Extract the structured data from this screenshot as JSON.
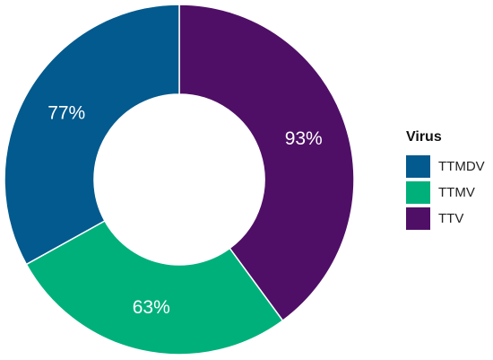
{
  "chart_data": {
    "type": "pie",
    "subtype": "donut",
    "legend_title": "Virus",
    "legend_position": "right",
    "slices": [
      {
        "name": "TTV",
        "value": 93,
        "label": "93%",
        "color": "#4f0f66"
      },
      {
        "name": "TTMV",
        "value": 63,
        "label": "63%",
        "color": "#00b07b"
      },
      {
        "name": "TTMDV",
        "value": 77,
        "label": "77%",
        "color": "#025a8e"
      }
    ],
    "legend": [
      {
        "name": "TTMDV",
        "color": "#025a8e"
      },
      {
        "name": "TTMV",
        "color": "#00b07b"
      },
      {
        "name": "TTV",
        "color": "#4f0f66"
      }
    ]
  }
}
